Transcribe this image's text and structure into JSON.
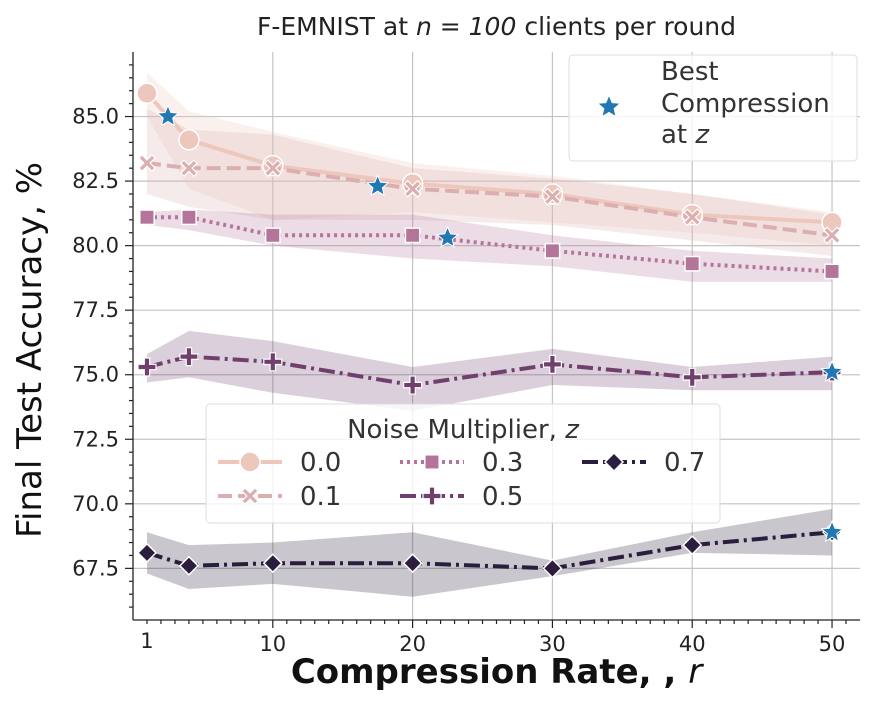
{
  "chart_data": {
    "type": "line",
    "title": "F-EMNIST at",
    "title_math": "n = 100",
    "title_suffix": "clients per round",
    "xlabel": "Compression Rate, ,",
    "xlabel_symbol": "r",
    "ylabel": "Final Test Accuracy, %",
    "xlim": [
      0,
      52
    ],
    "ylim": [
      65.5,
      87.5
    ],
    "xticks": [
      10,
      20,
      30,
      40,
      50
    ],
    "xtick_extra_label": "1",
    "yticks": [
      67.5,
      70.0,
      72.5,
      75.0,
      77.5,
      80.0,
      82.5,
      85.0
    ],
    "ytick_labels": [
      "67.5",
      "70.0",
      "72.5",
      "75.0",
      "77.5",
      "80.0",
      "82.5",
      "85.0"
    ],
    "grid": true,
    "x": [
      1,
      4,
      10,
      20,
      30,
      40,
      50
    ],
    "series": [
      {
        "name": "0.0",
        "color": "#edc6bc",
        "marker": "circle",
        "dash": "solid",
        "width": 4,
        "values": [
          85.9,
          84.1,
          83.1,
          82.4,
          82.0,
          81.2,
          80.9
        ],
        "band_low": [
          85.0,
          82.2,
          81.0,
          81.3,
          80.9,
          80.5,
          80.0
        ],
        "band_high": [
          86.7,
          85.2,
          84.4,
          83.2,
          82.7,
          82.0,
          81.3
        ]
      },
      {
        "name": "0.1",
        "color": "#dbafaf",
        "marker": "x",
        "dash": "dashed",
        "width": 4,
        "values": [
          83.2,
          83.0,
          83.0,
          82.2,
          81.9,
          81.1,
          80.4
        ],
        "band_low": [
          82.0,
          81.5,
          81.0,
          81.0,
          80.8,
          80.2,
          79.6
        ],
        "band_high": [
          85.3,
          84.5,
          84.3,
          83.0,
          82.6,
          82.0,
          81.2
        ]
      },
      {
        "name": "0.3",
        "color": "#b5759a",
        "marker": "square",
        "dash": "dotted",
        "width": 4,
        "values": [
          81.1,
          81.1,
          80.4,
          80.4,
          79.8,
          79.3,
          79.0
        ],
        "band_low": [
          80.8,
          80.6,
          80.0,
          79.5,
          79.2,
          78.6,
          78.6
        ],
        "band_high": [
          81.3,
          81.4,
          81.2,
          81.2,
          80.4,
          79.8,
          79.5
        ]
      },
      {
        "name": "0.5",
        "color": "#713f6e",
        "marker": "plus",
        "dash": "dashdot",
        "width": 4,
        "values": [
          75.3,
          75.7,
          75.5,
          74.6,
          75.4,
          74.9,
          75.1
        ],
        "band_low": [
          74.7,
          74.9,
          74.3,
          73.6,
          74.6,
          74.4,
          74.4
        ],
        "band_high": [
          75.8,
          76.7,
          76.3,
          75.3,
          76.0,
          75.3,
          75.7
        ]
      },
      {
        "name": "0.7",
        "color": "#2b1d3d",
        "marker": "diamond",
        "dash": "dashdot",
        "width": 4,
        "values": [
          68.1,
          67.6,
          67.7,
          67.7,
          67.5,
          68.4,
          68.9
        ],
        "band_low": [
          67.3,
          66.7,
          66.9,
          66.4,
          67.2,
          68.1,
          68.0
        ],
        "band_high": [
          68.9,
          68.4,
          68.5,
          68.9,
          67.8,
          68.9,
          69.8
        ]
      }
    ],
    "best_compression": {
      "name": "Best Compression at",
      "name_lines": [
        "Best",
        "Compression",
        "at"
      ],
      "name_symbol": "z",
      "color": "#1f77b4",
      "marker": "star",
      "points": [
        {
          "x": 2.5,
          "y": 85.0
        },
        {
          "x": 17.5,
          "y": 82.3
        },
        {
          "x": 22.5,
          "y": 80.3
        },
        {
          "x": 50,
          "y": 75.1
        },
        {
          "x": 50,
          "y": 68.9
        }
      ]
    },
    "legend": {
      "title": "Noise Multiplier,",
      "title_symbol": "z",
      "placement": "center-left",
      "columns": 3
    },
    "legend_best_placement": "top-right"
  }
}
